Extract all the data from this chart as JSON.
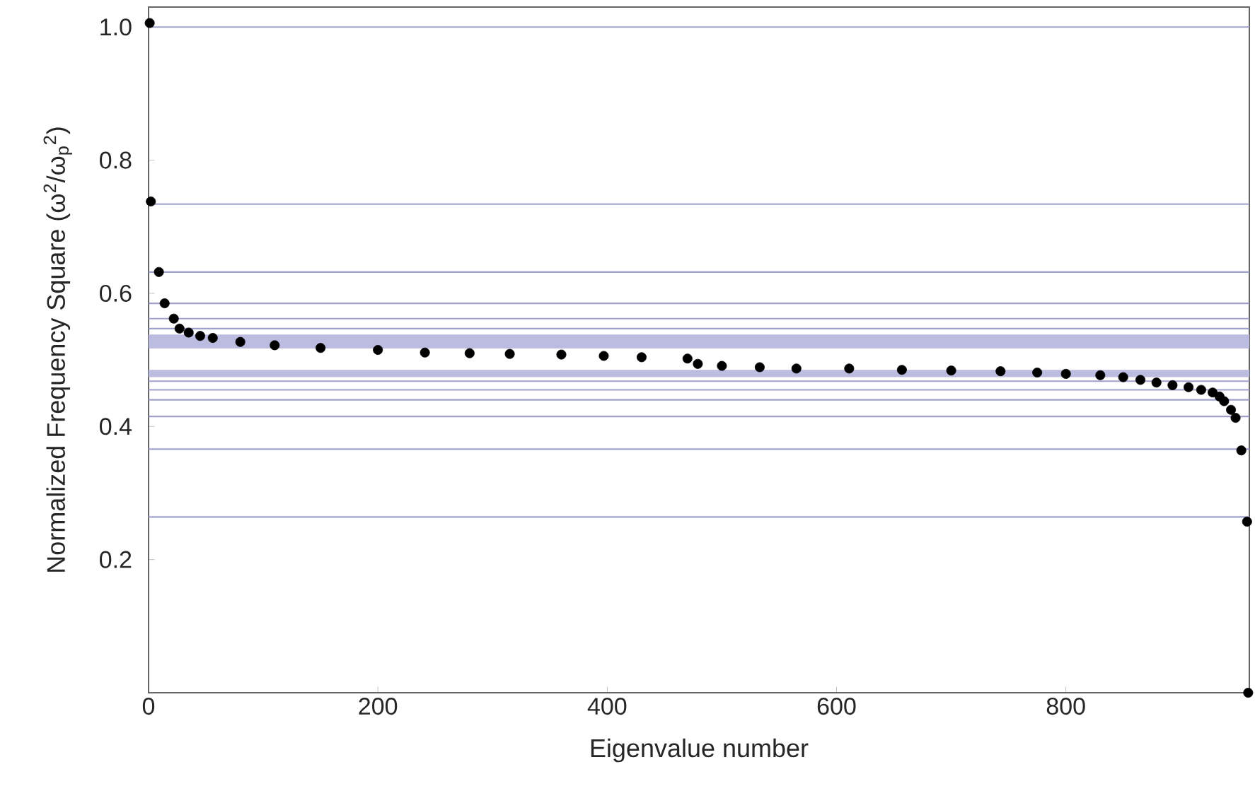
{
  "chart_data": {
    "type": "scatter",
    "xlabel": "Eigenvalue number",
    "ylabel": "Normalized Frequency Square  (ω$^{2}$/ω$_{p}$$^{2}$)",
    "x": [
      1,
      2,
      9,
      14,
      22,
      27,
      35,
      45,
      56,
      80,
      110,
      150,
      200,
      241,
      280,
      315,
      360,
      397,
      430,
      470,
      479,
      500,
      533,
      565,
      611,
      657,
      700,
      743,
      775,
      800,
      830,
      850,
      865,
      879,
      893,
      907,
      918,
      928,
      934,
      938,
      944,
      948,
      953,
      958,
      959
    ],
    "values": [
      1.006,
      0.738,
      0.632,
      0.585,
      0.562,
      0.547,
      0.541,
      0.536,
      0.533,
      0.527,
      0.522,
      0.518,
      0.515,
      0.511,
      0.51,
      0.509,
      0.508,
      0.506,
      0.504,
      0.502,
      0.494,
      0.491,
      0.489,
      0.487,
      0.487,
      0.485,
      0.484,
      0.483,
      0.481,
      0.479,
      0.477,
      0.474,
      0.47,
      0.466,
      0.462,
      0.459,
      0.455,
      0.451,
      0.445,
      0.438,
      0.425,
      0.413,
      0.364,
      0.257,
      0.0
    ],
    "color": "#000000",
    "marker": "circle",
    "xlim": [
      0,
      960
    ],
    "ylim": [
      0,
      1.03
    ],
    "xticks": [
      0,
      200,
      400,
      600,
      800
    ],
    "yticks": [
      {
        "value": 0.2,
        "label": "0.2"
      },
      {
        "value": 0.4,
        "label": "0.4"
      },
      {
        "value": 0.6,
        "label": "0.6"
      },
      {
        "value": 0.8,
        "label": "0.8"
      },
      {
        "value": 1.0,
        "label": "1.0"
      }
    ],
    "ref_lines": [
      {
        "axis": "y",
        "value": 1.0,
        "color": "#a0a0cc"
      },
      {
        "axis": "y",
        "value": 0.734,
        "color": "#a0a0cc"
      },
      {
        "axis": "y",
        "value": 0.632,
        "color": "#a0a0cc"
      },
      {
        "axis": "y",
        "value": 0.585,
        "color": "#a0a0cc"
      },
      {
        "axis": "y",
        "value": 0.562,
        "color": "#a0a0cc"
      },
      {
        "axis": "y",
        "value": 0.547,
        "color": "#a0a0cc"
      },
      {
        "axis": "y",
        "value": 0.468,
        "color": "#a0a0cc"
      },
      {
        "axis": "y",
        "value": 0.455,
        "color": "#a0a0cc"
      },
      {
        "axis": "y",
        "value": 0.44,
        "color": "#a0a0cc"
      },
      {
        "axis": "y",
        "value": 0.415,
        "color": "#a0a0cc"
      },
      {
        "axis": "y",
        "value": 0.366,
        "color": "#a0a0cc"
      },
      {
        "axis": "y",
        "value": 0.264,
        "color": "#a0a0cc"
      }
    ],
    "bands": [
      {
        "axis": "y",
        "from": 0.517,
        "to": 0.538,
        "color": "#bcbce0"
      },
      {
        "axis": "y",
        "from": 0.474,
        "to": 0.485,
        "color": "#bcbce0"
      }
    ]
  }
}
